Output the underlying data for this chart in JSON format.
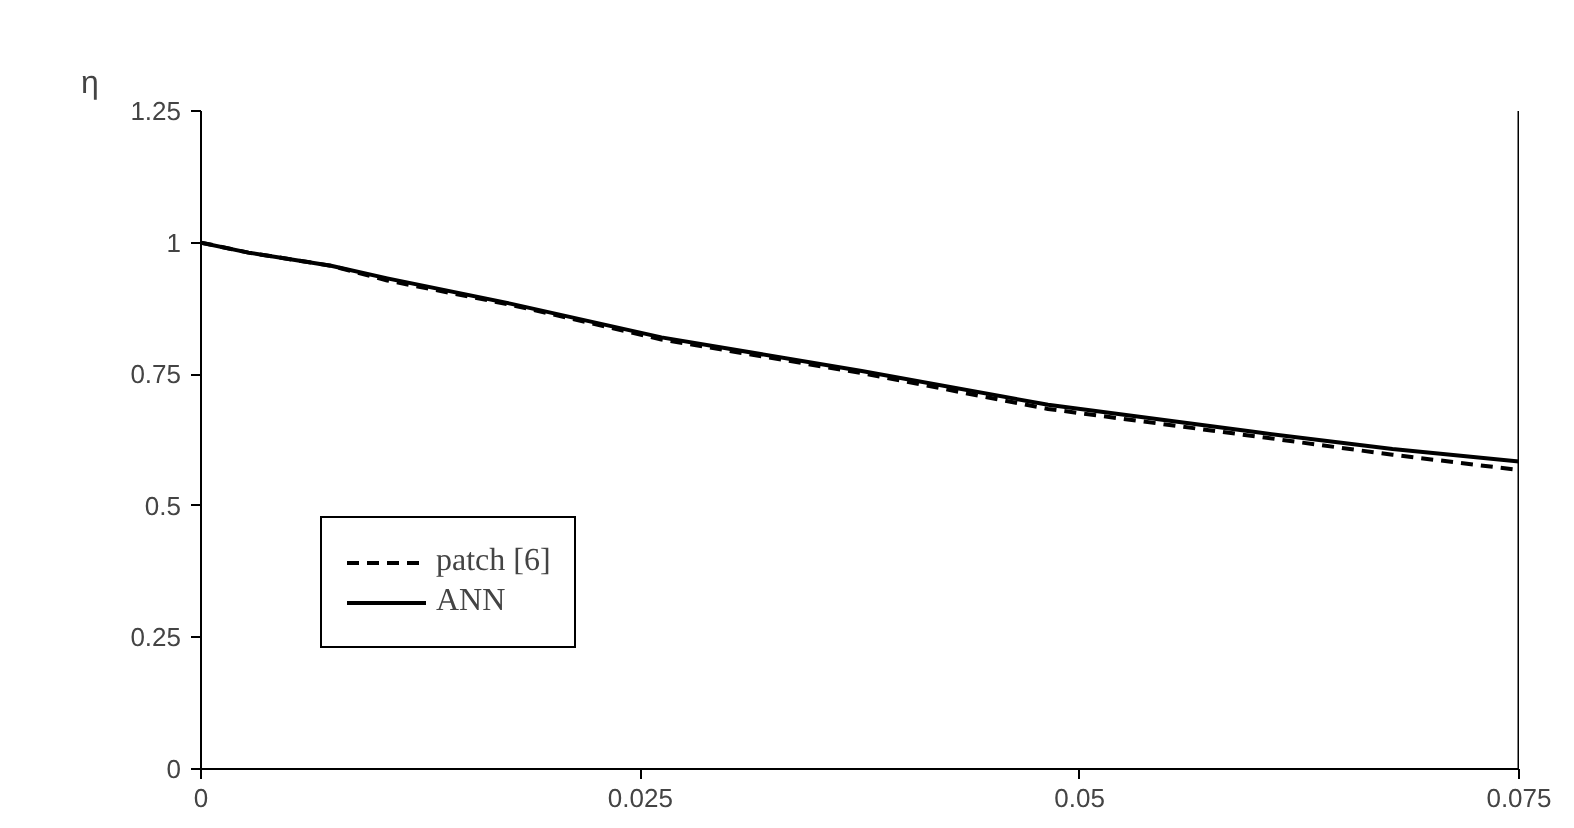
{
  "chart_data": {
    "type": "line",
    "ylabel": "η",
    "xlim": [
      0,
      0.075
    ],
    "ylim": [
      0,
      1.25
    ],
    "xticks": [
      0,
      0.025,
      0.05,
      0.075
    ],
    "yticks": [
      0,
      0.25,
      0.5,
      0.75,
      1,
      1.25
    ],
    "grid": false,
    "legend": "bottom left",
    "marker": "none",
    "series": [
      {
        "name": "patch [6]",
        "color": "#000000",
        "line_style": "dashed",
        "x": [
          0,
          0.0027,
          0.0074,
          0.0106,
          0.0176,
          0.0262,
          0.0376,
          0.0482,
          0.06,
          0.0678,
          0.075
        ],
        "values": [
          1,
          0.981,
          0.956,
          0.928,
          0.882,
          0.816,
          0.752,
          0.684,
          0.632,
          0.597,
          0.568
        ]
      },
      {
        "name": "ANN",
        "color": "#000000",
        "line_style": "solid",
        "x": [
          0,
          0.0027,
          0.0074,
          0.0106,
          0.0176,
          0.0262,
          0.0376,
          0.0482,
          0.06,
          0.0678,
          0.075
        ],
        "values": [
          1,
          0.981,
          0.956,
          0.932,
          0.884,
          0.82,
          0.756,
          0.692,
          0.64,
          0.608,
          0.584
        ]
      }
    ]
  }
}
